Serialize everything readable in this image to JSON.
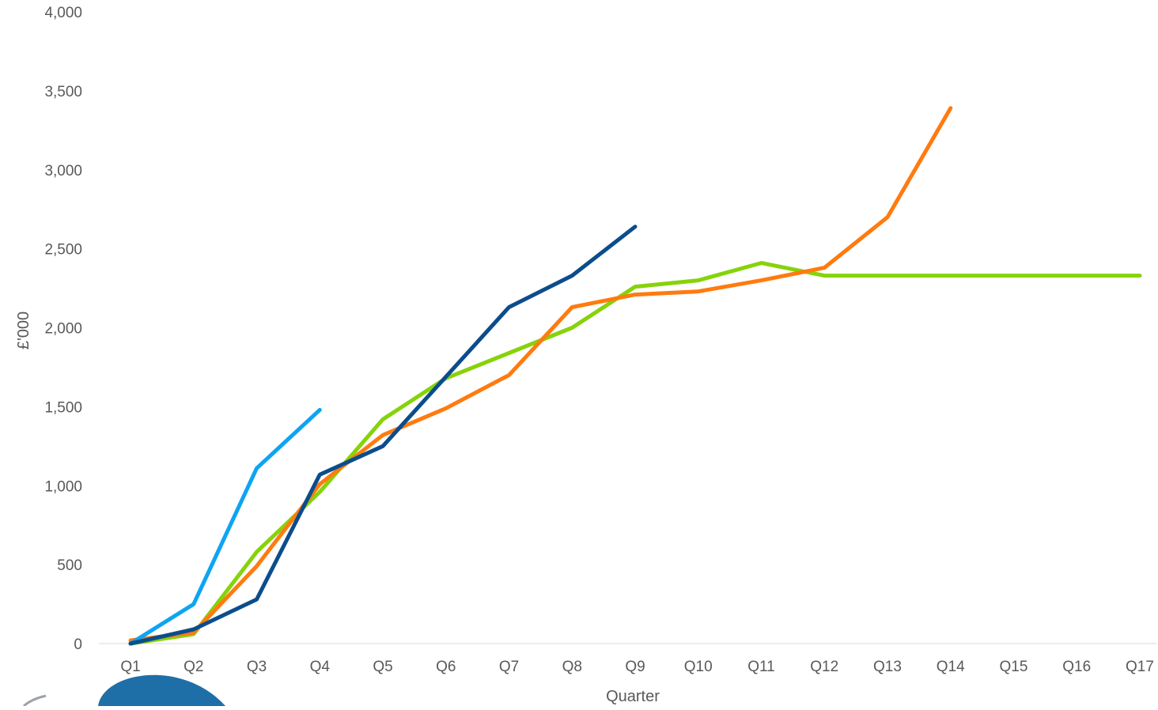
{
  "chart_data": {
    "type": "line",
    "title": "",
    "xlabel": "Quarter",
    "ylabel": "£'000",
    "categories": [
      "Q1",
      "Q2",
      "Q3",
      "Q4",
      "Q5",
      "Q6",
      "Q7",
      "Q8",
      "Q9",
      "Q10",
      "Q11",
      "Q12",
      "Q13",
      "Q14",
      "Q15",
      "Q16",
      "Q17"
    ],
    "ylim": [
      0,
      4000
    ],
    "yticks": [
      0,
      500,
      1000,
      1500,
      2000,
      2500,
      3000,
      3500,
      4000
    ],
    "ytick_labels": [
      "0",
      "500",
      "1,000",
      "1,500",
      "2,000",
      "2,500",
      "3,000",
      "3,500",
      "4,000"
    ],
    "grid": false,
    "legend": "none",
    "series": [
      {
        "color": "#86d30a",
        "values": [
          0,
          60,
          580,
          960,
          1420,
          1680,
          1840,
          2000,
          2260,
          2300,
          2410,
          2330,
          2330,
          2330,
          2330,
          2330,
          2330
        ]
      },
      {
        "color": "#ff7b0f",
        "values": [
          20,
          70,
          490,
          1010,
          1320,
          1490,
          1700,
          2130,
          2210,
          2230,
          2300,
          2380,
          2700,
          3390,
          null,
          null,
          null
        ]
      },
      {
        "color": "#0ea4f2",
        "values": [
          0,
          250,
          1110,
          1480,
          null,
          null,
          null,
          null,
          null,
          null,
          null,
          null,
          null,
          null,
          null,
          null,
          null
        ]
      },
      {
        "color": "#0b4d8c",
        "values": [
          0,
          90,
          280,
          1070,
          1250,
          1690,
          2130,
          2330,
          2640,
          null,
          null,
          null,
          null,
          null,
          null,
          null,
          null
        ]
      }
    ]
  },
  "decoration": {
    "logo_color": "#1e6fa8"
  }
}
